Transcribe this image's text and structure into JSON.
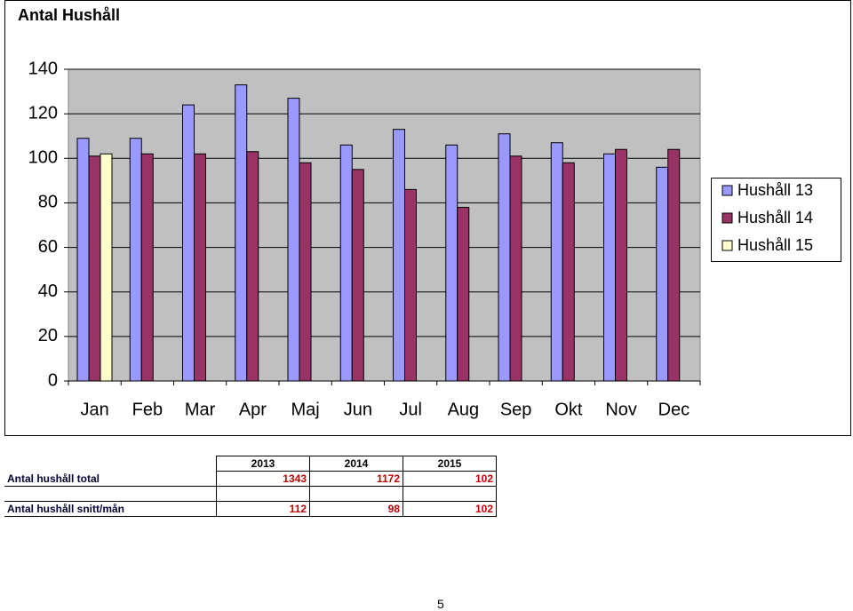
{
  "chart_data": {
    "type": "bar",
    "title": "Antal Hushåll",
    "categories": [
      "Jan",
      "Feb",
      "Mar",
      "Apr",
      "Maj",
      "Jun",
      "Jul",
      "Aug",
      "Sep",
      "Okt",
      "Nov",
      "Dec"
    ],
    "series": [
      {
        "name": "Hushåll 13",
        "color": "#9999ff",
        "values": [
          109,
          109,
          124,
          133,
          127,
          106,
          113,
          106,
          111,
          107,
          102,
          96
        ]
      },
      {
        "name": "Hushåll 14",
        "color": "#993366",
        "values": [
          101,
          102,
          102,
          103,
          98,
          95,
          86,
          78,
          101,
          98,
          104,
          104
        ]
      },
      {
        "name": "Hushåll 15",
        "color": "#ffffcc",
        "values": [
          102,
          null,
          null,
          null,
          null,
          null,
          null,
          null,
          null,
          null,
          null,
          null
        ]
      }
    ],
    "ylim": [
      0,
      140
    ],
    "yticks": [
      0,
      20,
      40,
      60,
      80,
      100,
      120,
      140
    ],
    "grid": true,
    "legend": "right"
  },
  "table": {
    "headers": [
      "2013",
      "2014",
      "2015"
    ],
    "rows": [
      {
        "label": "Antal hushåll total",
        "values": [
          "1343",
          "1172",
          "102"
        ]
      },
      {
        "label": "Antal hushåll snitt/mån",
        "values": [
          "112",
          "98",
          "102"
        ]
      }
    ]
  },
  "page_number": "5"
}
